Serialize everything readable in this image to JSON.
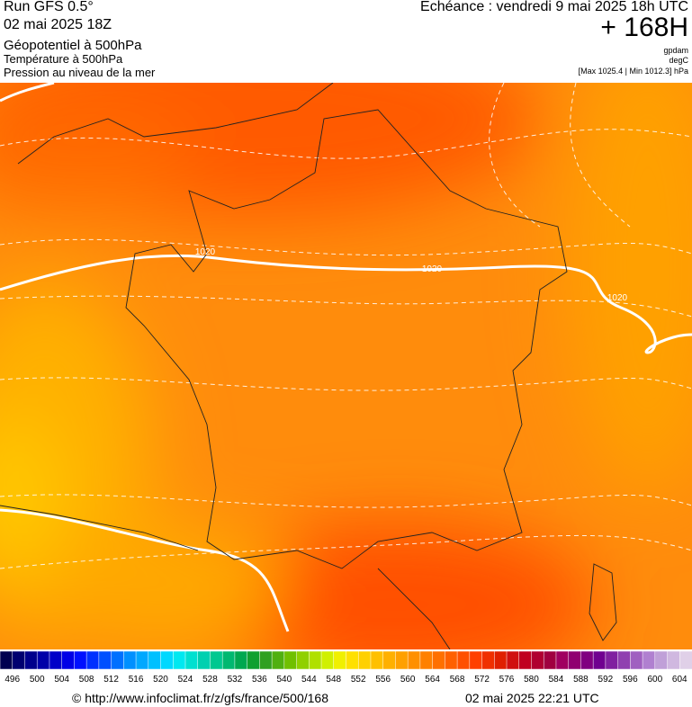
{
  "header": {
    "run": "Run GFS 0.5°",
    "run_date": "02 mai 2025 18Z",
    "layer1": "Géopotentiel à 500hPa",
    "layer2": "Température à 500hPa",
    "layer3": "Pression au niveau de la mer",
    "valid": "Echéance : vendredi 9 mai 2025 18h UTC",
    "lead": "+ 168H",
    "unit1": "gpdam",
    "unit2": "degC",
    "unit3": "[Max 1025.4 | Min 1012.3] hPa"
  },
  "map": {
    "contour_labels": [
      "1020",
      "1020",
      "1020"
    ]
  },
  "colorbar": {
    "labels": [
      "496",
      "500",
      "504",
      "508",
      "512",
      "516",
      "520",
      "524",
      "528",
      "532",
      "536",
      "540",
      "544",
      "548",
      "552",
      "556",
      "560",
      "564",
      "568",
      "572",
      "576",
      "580",
      "584",
      "588",
      "592",
      "596",
      "600",
      "604"
    ],
    "colors": [
      "#000050",
      "#000070",
      "#00008c",
      "#0000a8",
      "#0000c8",
      "#0000e6",
      "#0010ff",
      "#0030ff",
      "#0050ff",
      "#0070ff",
      "#0090ff",
      "#00a8ff",
      "#00c0ff",
      "#00d8ff",
      "#00e8f0",
      "#00e0d0",
      "#00d0b0",
      "#00c890",
      "#00b870",
      "#00a850",
      "#10a030",
      "#30a020",
      "#50b010",
      "#70c000",
      "#90d000",
      "#b0e000",
      "#d0f000",
      "#f0f000",
      "#ffe000",
      "#ffd000",
      "#ffc000",
      "#ffb000",
      "#ffa000",
      "#ff9000",
      "#ff8000",
      "#ff7000",
      "#ff6000",
      "#ff5000",
      "#ff4000",
      "#f03000",
      "#e02000",
      "#d01010",
      "#c00020",
      "#b00030",
      "#a00040",
      "#a00060",
      "#900070",
      "#800080",
      "#700090",
      "#8020a0",
      "#9040b0",
      "#a060c0",
      "#b080d0",
      "#c0a0d8",
      "#d0b8e0",
      "#e0d0e8"
    ]
  },
  "footer": {
    "source": "© http://www.infoclimat.fr/z/gfs/france/500/168",
    "generated": "02 mai 2025 22:21 UTC"
  }
}
